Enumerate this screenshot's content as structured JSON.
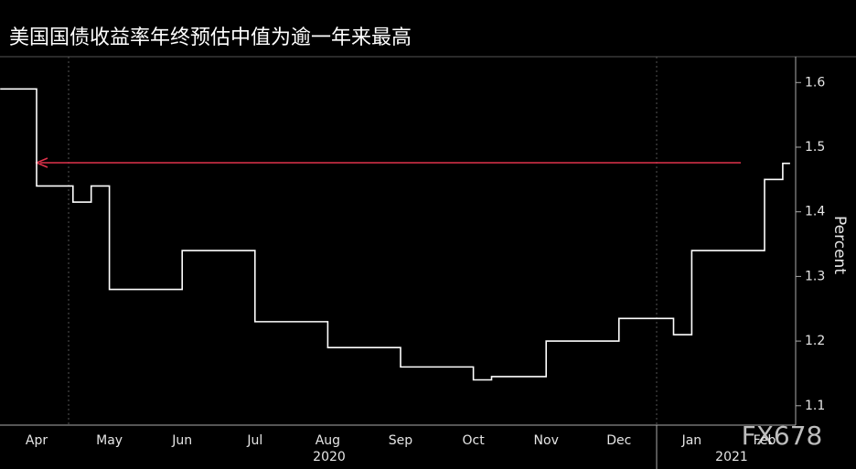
{
  "chart_data": {
    "type": "line",
    "title": "美国国债收益率年终预估中值为逾一年来最高",
    "y_label": "Percent",
    "categories": [
      null,
      null,
      "Apr",
      null,
      null,
      null,
      "May",
      null,
      null,
      null,
      "Jun",
      null,
      null,
      null,
      "Jul",
      null,
      null,
      null,
      "Aug",
      null,
      null,
      null,
      "Sep",
      null,
      null,
      null,
      "Oct",
      null,
      null,
      null,
      "Nov",
      null,
      null,
      null,
      "Dec",
      null,
      null,
      null,
      "Jan",
      null,
      null,
      null,
      "Feb",
      null
    ],
    "series": [
      {
        "color": "#ffffff",
        "values": [
          1.59,
          1.59,
          1.44,
          1.44,
          1.415,
          1.44,
          1.28,
          1.28,
          1.28,
          1.28,
          1.34,
          1.34,
          1.34,
          1.34,
          1.23,
          1.23,
          1.23,
          1.23,
          1.19,
          1.19,
          1.19,
          1.19,
          1.16,
          1.16,
          1.16,
          1.16,
          1.14,
          1.145,
          1.145,
          1.145,
          1.2,
          1.2,
          1.2,
          1.2,
          1.235,
          1.235,
          1.235,
          1.21,
          1.34,
          1.34,
          1.34,
          1.34,
          1.45,
          1.475
        ]
      }
    ],
    "ylim": [
      1.07,
      1.64
    ],
    "yticks": [
      1.1,
      1.2,
      1.3,
      1.4,
      1.5,
      1.6
    ],
    "year_labels": [
      "2020",
      "2021"
    ],
    "watermark": "FX678"
  }
}
